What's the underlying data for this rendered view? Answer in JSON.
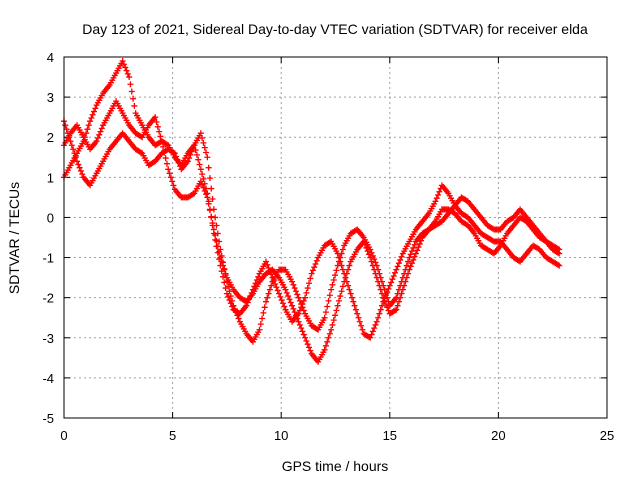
{
  "chart_data": {
    "type": "scatter",
    "title": "Day 123 of 2021, Sidereal Day-to-day VTEC variation (SDTVAR) for receiver elda",
    "xlabel": "GPS time / hours",
    "ylabel": "SDTVAR / TECUs",
    "xlim": [
      0,
      25
    ],
    "ylim": [
      -5,
      4
    ],
    "x_ticks": [
      0,
      5,
      10,
      15,
      20,
      25
    ],
    "y_ticks": [
      -5,
      -4,
      -3,
      -2,
      -1,
      0,
      1,
      2,
      3,
      4
    ],
    "x_tick_labels": [
      "0",
      "5",
      "10",
      "15",
      "20",
      "25"
    ],
    "y_tick_labels": [
      "-5",
      "-4",
      "-3",
      "-2",
      "-1",
      "0",
      "1",
      "2",
      "3",
      "4"
    ],
    "grid": true,
    "marker": "plus",
    "series_color": "#ff0000",
    "series": [
      {
        "name": "trace-1",
        "x": [
          0.0,
          0.3,
          0.6,
          0.9,
          1.2,
          1.5,
          1.8,
          2.1,
          2.4,
          2.7,
          3.0,
          3.3,
          3.6,
          3.9,
          4.2,
          4.5,
          4.8,
          5.1,
          5.4,
          5.7,
          6.0,
          6.3,
          6.6,
          6.9,
          7.2,
          7.5,
          7.8,
          8.1,
          8.4,
          8.7,
          9.0,
          9.3,
          9.6,
          9.9,
          10.2,
          10.5,
          10.8,
          11.1,
          11.4,
          11.7,
          12.0,
          12.3,
          12.6,
          12.9,
          13.2,
          13.5,
          13.8,
          14.1,
          14.4,
          14.7,
          15.0,
          15.3,
          15.6,
          15.9,
          16.2,
          16.5,
          16.8,
          17.1,
          17.4,
          17.7,
          18.0,
          18.3,
          18.6,
          18.9,
          19.2,
          19.5,
          19.8,
          20.1,
          20.4,
          20.7,
          21.0,
          21.3,
          21.6,
          21.9,
          22.2,
          22.5,
          22.8
        ],
        "y": [
          1.0,
          1.3,
          1.6,
          1.9,
          2.4,
          2.8,
          3.1,
          3.3,
          3.6,
          3.9,
          3.5,
          2.6,
          2.3,
          2.0,
          1.8,
          1.9,
          1.8,
          1.5,
          1.3,
          1.6,
          1.8,
          1.2,
          0.6,
          -0.4,
          -1.2,
          -1.9,
          -2.3,
          -2.4,
          -2.2,
          -1.8,
          -1.4,
          -1.1,
          -1.5,
          -1.9,
          -2.3,
          -2.6,
          -2.4,
          -2.0,
          -1.4,
          -1.0,
          -0.7,
          -0.6,
          -0.9,
          -1.4,
          -1.9,
          -2.4,
          -2.9,
          -3.0,
          -2.6,
          -2.1,
          -1.7,
          -1.3,
          -0.9,
          -0.6,
          -0.3,
          -0.1,
          0.1,
          0.4,
          0.8,
          0.6,
          0.3,
          0.1,
          0.0,
          -0.2,
          -0.4,
          -0.5,
          -0.6,
          -0.6,
          -0.8,
          -1.0,
          -1.1,
          -0.9,
          -0.7,
          -0.8,
          -1.0,
          -1.1,
          -1.2
        ]
      },
      {
        "name": "trace-2",
        "x": [
          0.0,
          0.3,
          0.6,
          0.9,
          1.2,
          1.5,
          1.8,
          2.1,
          2.4,
          2.7,
          3.0,
          3.3,
          3.6,
          3.9,
          4.2,
          4.5,
          4.8,
          5.1,
          5.4,
          5.7,
          6.0,
          6.3,
          6.6,
          6.9,
          7.2,
          7.5,
          7.8,
          8.1,
          8.4,
          8.7,
          9.0,
          9.3,
          9.6,
          9.9,
          10.2,
          10.5,
          10.8,
          11.1,
          11.4,
          11.7,
          12.0,
          12.3,
          12.6,
          12.9,
          13.2,
          13.5,
          13.8,
          14.1,
          14.4,
          14.7,
          15.0,
          15.3,
          15.6,
          15.9,
          16.2,
          16.5,
          16.8,
          17.1,
          17.4,
          17.7,
          18.0,
          18.3,
          18.6,
          18.9,
          19.2,
          19.5,
          19.8,
          20.1,
          20.4,
          20.7,
          21.0,
          21.3,
          21.6,
          21.9,
          22.2,
          22.5,
          22.8
        ],
        "y": [
          1.8,
          2.1,
          2.3,
          2.0,
          1.7,
          1.9,
          2.3,
          2.6,
          2.9,
          2.6,
          2.3,
          2.1,
          2.0,
          2.3,
          2.5,
          1.9,
          1.2,
          0.7,
          0.5,
          0.5,
          0.6,
          0.9,
          0.5,
          -0.3,
          -1.0,
          -1.5,
          -1.8,
          -2.0,
          -2.1,
          -1.9,
          -1.6,
          -1.4,
          -1.3,
          -1.5,
          -1.8,
          -2.2,
          -2.6,
          -3.0,
          -3.4,
          -3.6,
          -3.3,
          -2.8,
          -2.2,
          -1.6,
          -1.1,
          -0.8,
          -0.6,
          -1.0,
          -1.5,
          -2.0,
          -2.4,
          -2.3,
          -1.8,
          -1.3,
          -0.9,
          -0.5,
          -0.3,
          -0.2,
          -0.1,
          0.1,
          0.3,
          0.5,
          0.4,
          0.2,
          0.0,
          -0.2,
          -0.3,
          -0.3,
          -0.1,
          0.0,
          0.2,
          0.0,
          -0.2,
          -0.4,
          -0.6,
          -0.8,
          -0.9
        ]
      },
      {
        "name": "trace-3",
        "x": [
          0.0,
          0.3,
          0.6,
          0.9,
          1.2,
          1.5,
          1.8,
          2.1,
          2.4,
          2.7,
          3.0,
          3.3,
          3.6,
          3.9,
          4.2,
          4.5,
          4.8,
          5.1,
          5.4,
          5.7,
          6.0,
          6.3,
          6.6,
          6.9,
          7.2,
          7.5,
          7.8,
          8.1,
          8.4,
          8.7,
          9.0,
          9.3,
          9.6,
          9.9,
          10.2,
          10.5,
          10.8,
          11.1,
          11.4,
          11.7,
          12.0,
          12.3,
          12.6,
          12.9,
          13.2,
          13.5,
          13.8,
          14.1,
          14.4,
          14.7,
          15.0,
          15.3,
          15.6,
          15.9,
          16.2,
          16.5,
          16.8,
          17.1,
          17.4,
          17.7,
          18.0,
          18.3,
          18.6,
          18.9,
          19.2,
          19.5,
          19.8,
          20.1,
          20.4,
          20.7,
          21.0,
          21.3,
          21.6,
          21.9,
          22.2,
          22.5,
          22.8
        ],
        "y": [
          2.4,
          1.9,
          1.4,
          1.0,
          0.8,
          1.1,
          1.4,
          1.7,
          1.9,
          2.1,
          1.9,
          1.7,
          1.6,
          1.3,
          1.4,
          1.6,
          1.7,
          1.6,
          1.2,
          1.4,
          1.8,
          2.1,
          1.5,
          0.2,
          -0.8,
          -1.6,
          -2.2,
          -2.6,
          -2.9,
          -3.1,
          -2.8,
          -2.1,
          -1.6,
          -1.3,
          -1.3,
          -1.6,
          -2.0,
          -2.4,
          -2.7,
          -2.8,
          -2.5,
          -1.8,
          -1.2,
          -0.7,
          -0.4,
          -0.3,
          -0.5,
          -0.8,
          -1.2,
          -1.7,
          -2.2,
          -2.0,
          -1.5,
          -1.0,
          -0.6,
          -0.4,
          -0.3,
          -0.1,
          0.2,
          0.2,
          0.1,
          -0.1,
          -0.2,
          -0.4,
          -0.7,
          -0.8,
          -0.9,
          -0.7,
          -0.4,
          -0.2,
          0.0,
          -0.1,
          -0.3,
          -0.5,
          -0.6,
          -0.7,
          -0.8
        ]
      }
    ]
  }
}
